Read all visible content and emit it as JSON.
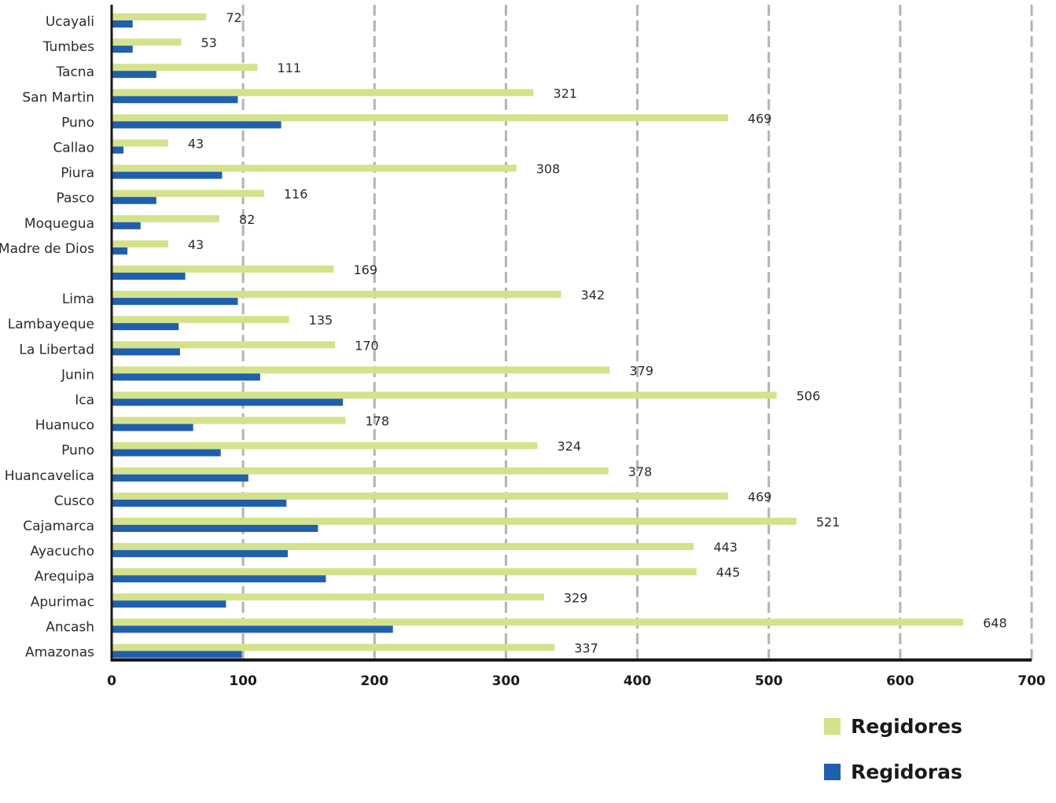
{
  "chart_data": {
    "type": "bar",
    "orientation": "horizontal",
    "categories": [
      "Ucayali",
      "Tumbes",
      "Tacna",
      "San Martin",
      "Puno",
      "Callao",
      "Piura",
      "Pasco",
      "Moquegua",
      "Madre de Dios",
      "",
      "Lima",
      "Lambayeque",
      "La Libertad",
      "Junin",
      "Ica",
      "Huanuco",
      "Puno",
      "Huancavelica",
      "Cusco",
      "Cajamarca",
      "Ayacucho",
      "Arequipa",
      "Apurimac",
      "Ancash",
      "Amazonas"
    ],
    "series": [
      {
        "name": "Regidores",
        "color": "#d4e28c",
        "values": [
          72,
          53,
          111,
          321,
          469,
          43,
          308,
          116,
          82,
          43,
          169,
          342,
          135,
          170,
          379,
          506,
          178,
          324,
          378,
          469,
          521,
          443,
          445,
          329,
          648,
          337
        ]
      },
      {
        "name": "Regidoras",
        "color": "#1f5fae",
        "values": [
          16,
          16,
          34,
          96,
          129,
          9,
          84,
          34,
          22,
          12,
          56,
          96,
          51,
          52,
          113,
          176,
          62,
          83,
          104,
          133,
          157,
          134,
          163,
          87,
          214,
          99
        ]
      }
    ],
    "value_labels": [
      "72",
      "53",
      "111",
      "321",
      "469",
      "43",
      "308",
      "116",
      "82",
      "43",
      "169",
      "342",
      "135",
      "170",
      "379",
      "506",
      "178",
      "324",
      "378",
      "469",
      "521",
      "443",
      "445",
      "329",
      "648",
      "337"
    ],
    "xlim": [
      0,
      700
    ],
    "xticks": [
      "0",
      "100",
      "200",
      "300",
      "400",
      "500",
      "600",
      "700"
    ],
    "grid": "vertical dashed",
    "legend_position": "bottom-right"
  },
  "legend": {
    "items": [
      {
        "label": "Regidores",
        "color": "#d4e28c"
      },
      {
        "label": "Regidoras",
        "color": "#1f5fae"
      }
    ]
  }
}
